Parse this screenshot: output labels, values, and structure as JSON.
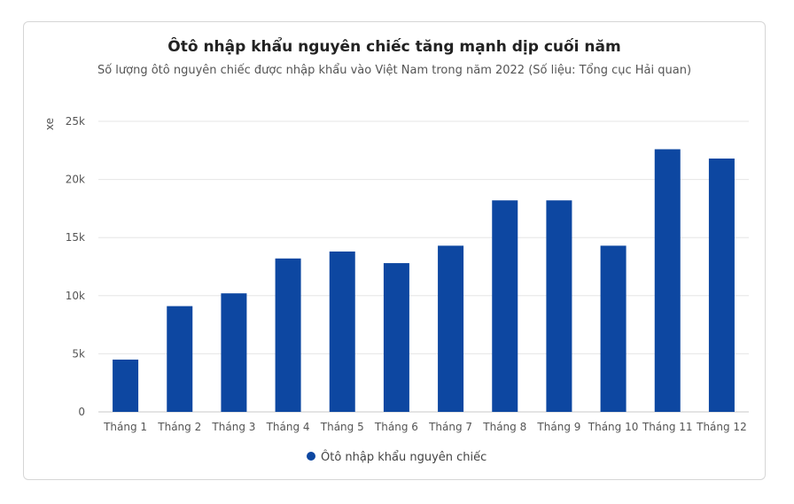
{
  "chart_data": {
    "type": "bar",
    "title": "Ôtô nhập khẩu nguyên chiếc tăng mạnh dịp cuối năm",
    "subtitle": "Số lượng ôtô nguyên chiếc được nhập khẩu vào Việt Nam trong năm 2022 (Số liệu: Tổng cục Hải quan)",
    "ylabel": "xe",
    "xlabel": "",
    "ylim": [
      0,
      25000
    ],
    "yticks": [
      {
        "value": 0,
        "label": "0"
      },
      {
        "value": 5000,
        "label": "5k"
      },
      {
        "value": 10000,
        "label": "10k"
      },
      {
        "value": 15000,
        "label": "15k"
      },
      {
        "value": 20000,
        "label": "20k"
      },
      {
        "value": 25000,
        "label": "25k"
      }
    ],
    "grid": true,
    "legend_position": "bottom",
    "categories": [
      "Tháng 1",
      "Tháng 2",
      "Tháng 3",
      "Tháng 4",
      "Tháng 5",
      "Tháng 6",
      "Tháng 7",
      "Tháng 8",
      "Tháng 9",
      "Tháng 10",
      "Tháng 11",
      "Tháng 12"
    ],
    "series": [
      {
        "name": "Ôtô nhập khẩu nguyên chiếc",
        "color": "#0d47a1",
        "values": [
          4500,
          9100,
          10200,
          13200,
          13800,
          12800,
          14300,
          18200,
          18200,
          14300,
          22600,
          21800
        ]
      }
    ]
  }
}
